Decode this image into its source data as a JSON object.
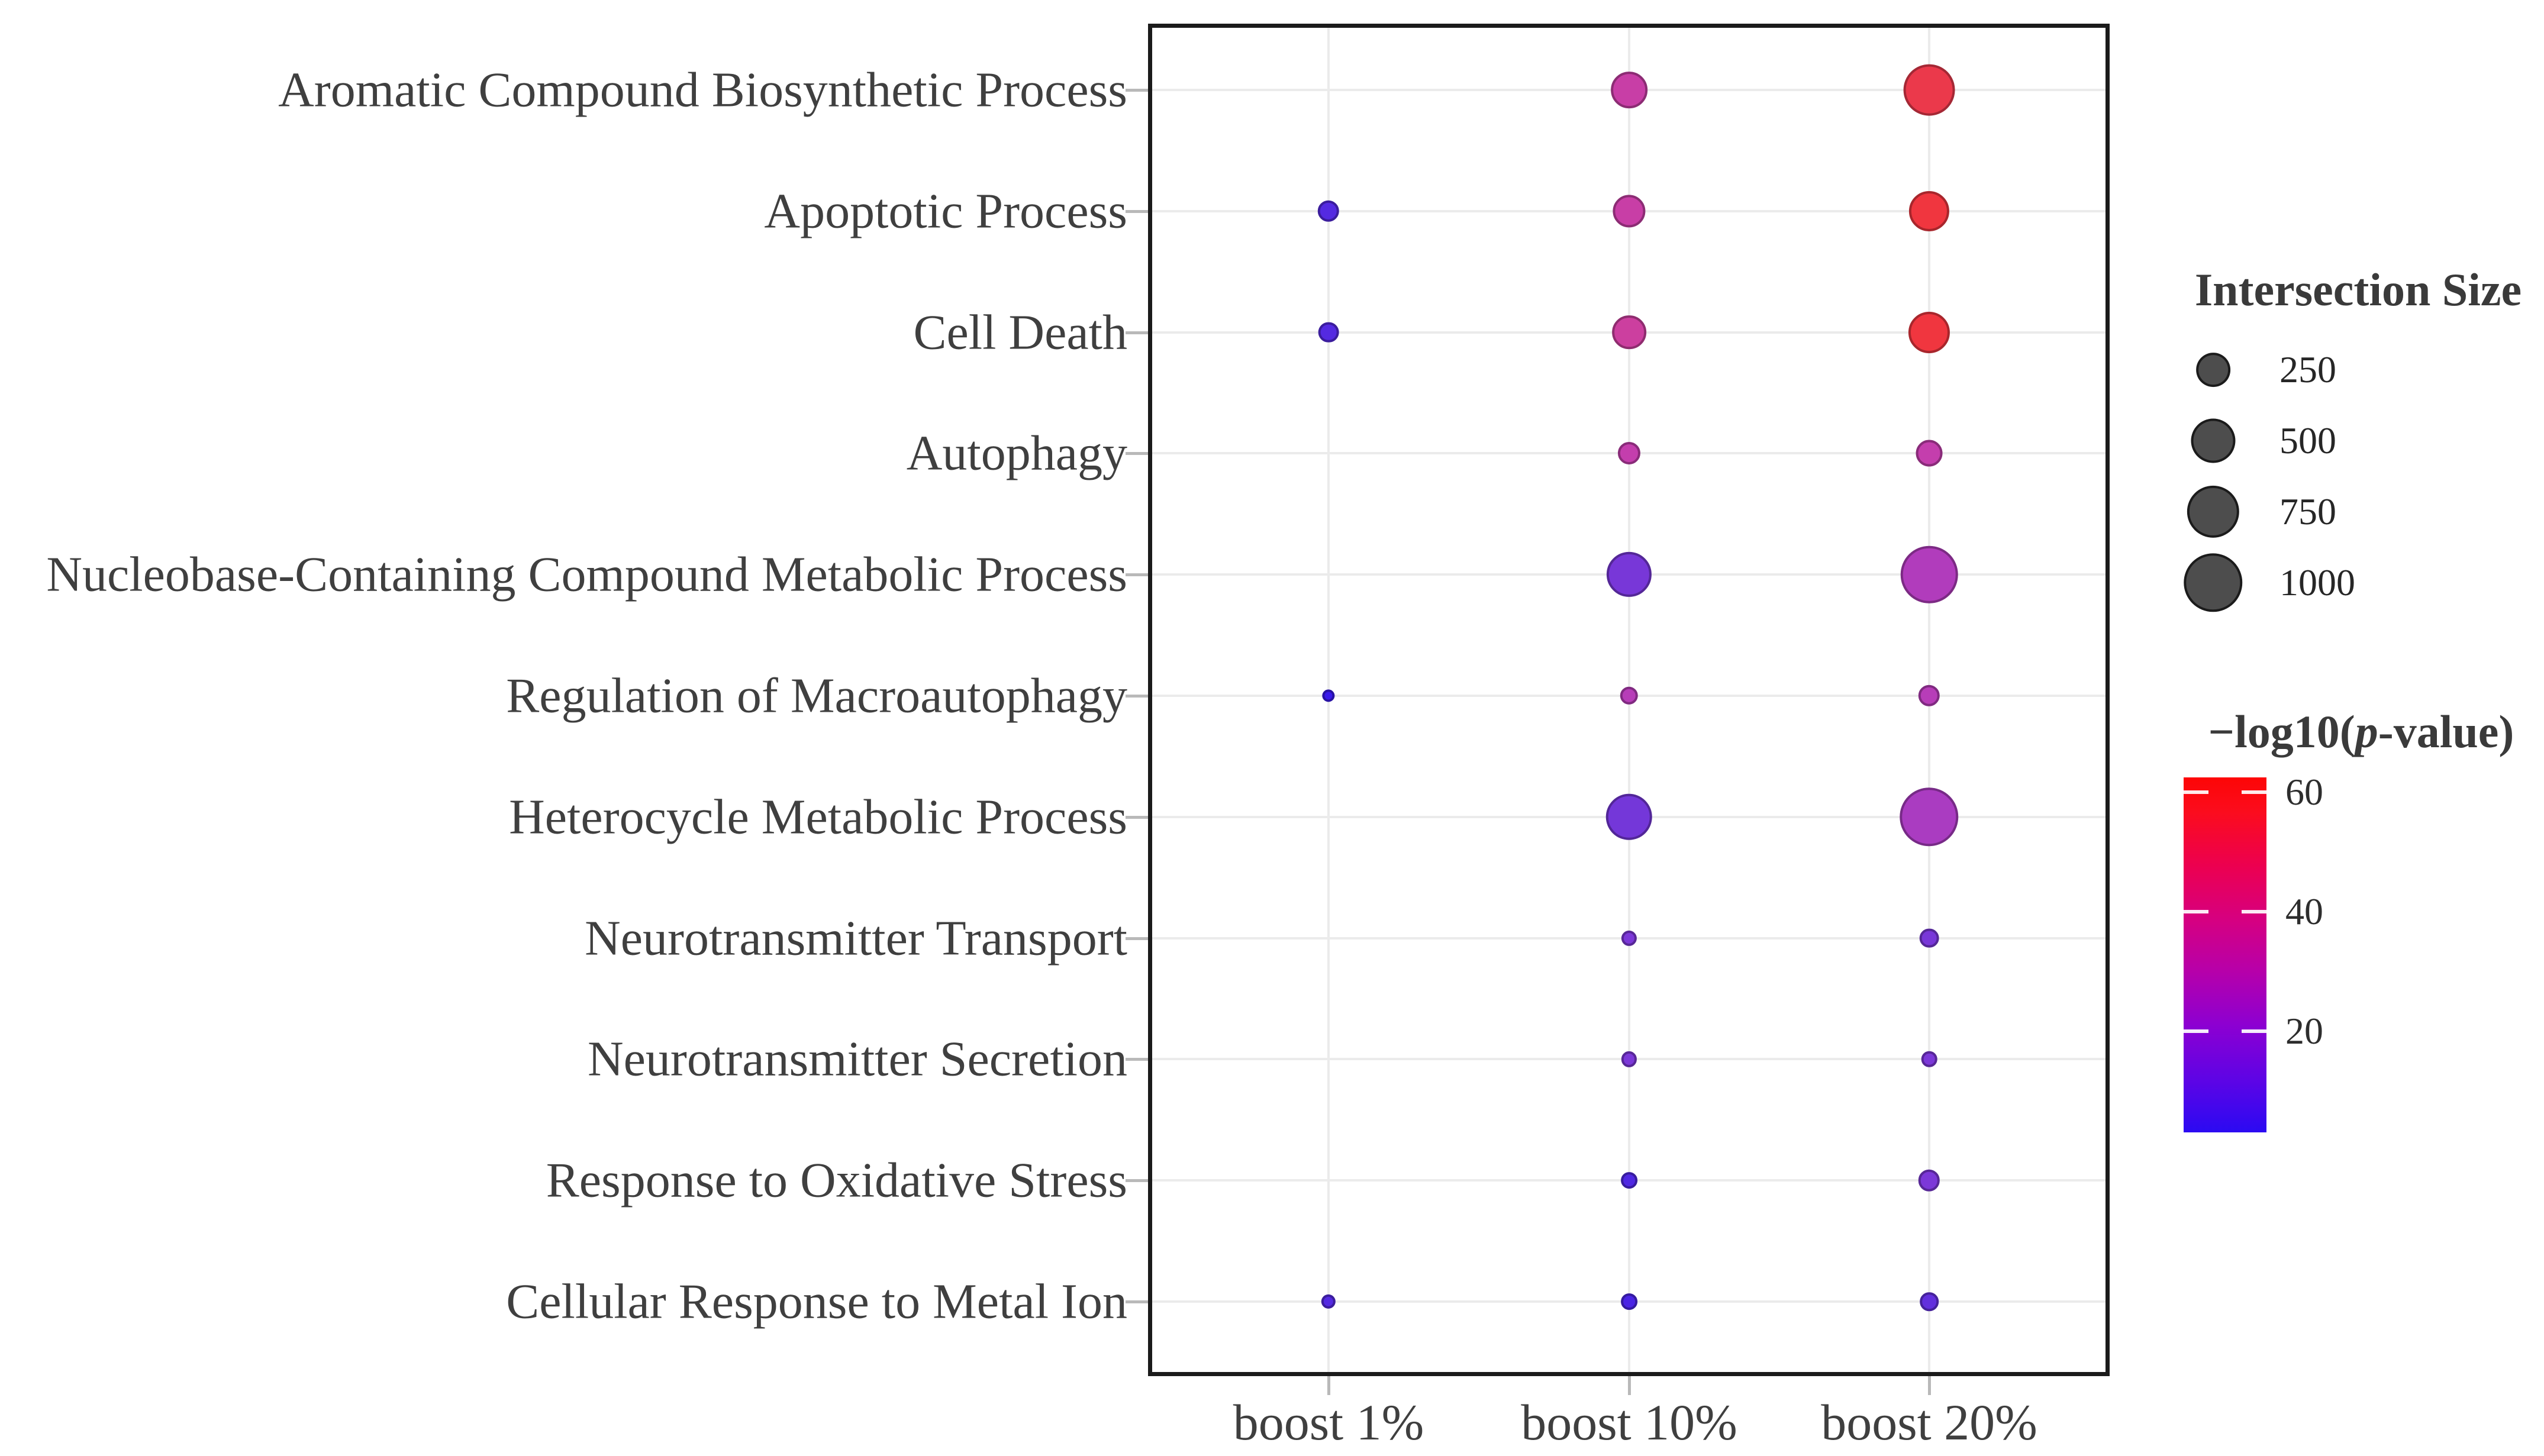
{
  "chart_data": {
    "type": "scatter",
    "subtype": "bubble-dot-plot",
    "title": "",
    "xlabel": "",
    "ylabel": "",
    "grid": true,
    "legend_position": "right",
    "x_categories": [
      "boost 1%",
      "boost 10%",
      "boost 20%"
    ],
    "y_categories": [
      "Aromatic Compound Biosynthetic Process",
      "Apoptotic Process",
      "Cell Death",
      "Autophagy",
      "Nucleobase-Containing Compound Metabolic Process",
      "Regulation of Macroautophagy",
      "Heterocycle Metabolic Process",
      "Neurotransmitter Transport",
      "Neurotransmitter Secretion",
      "Response to Oxidative Stress",
      "Cellular Response to Metal Ion"
    ],
    "points": [
      {
        "y": "Aromatic Compound Biosynthetic Process",
        "x": "boost 10%",
        "intersection_size": 300,
        "neg_log10_p": 35
      },
      {
        "y": "Aromatic Compound Biosynthetic Process",
        "x": "boost 20%",
        "intersection_size": 720,
        "neg_log10_p": 54
      },
      {
        "y": "Apoptotic Process",
        "x": "boost 1%",
        "intersection_size": 60,
        "neg_log10_p": 10
      },
      {
        "y": "Apoptotic Process",
        "x": "boost 10%",
        "intersection_size": 220,
        "neg_log10_p": 35
      },
      {
        "y": "Apoptotic Process",
        "x": "boost 20%",
        "intersection_size": 390,
        "neg_log10_p": 58
      },
      {
        "y": "Cell Death",
        "x": "boost 1%",
        "intersection_size": 50,
        "neg_log10_p": 10
      },
      {
        "y": "Cell Death",
        "x": "boost 10%",
        "intersection_size": 250,
        "neg_log10_p": 37
      },
      {
        "y": "Cell Death",
        "x": "boost 20%",
        "intersection_size": 420,
        "neg_log10_p": 58
      },
      {
        "y": "Autophagy",
        "x": "boost 10%",
        "intersection_size": 70,
        "neg_log10_p": 33
      },
      {
        "y": "Autophagy",
        "x": "boost 20%",
        "intersection_size": 120,
        "neg_log10_p": 33
      },
      {
        "y": "Nucleobase-Containing Compound Metabolic Process",
        "x": "boost 10%",
        "intersection_size": 520,
        "neg_log10_p": 18
      },
      {
        "y": "Nucleobase-Containing Compound Metabolic Process",
        "x": "boost 20%",
        "intersection_size": 930,
        "neg_log10_p": 29
      },
      {
        "y": "Regulation of Macroautophagy",
        "x": "boost 1%",
        "intersection_size": 4,
        "neg_log10_p": 5
      },
      {
        "y": "Regulation of Macroautophagy",
        "x": "boost 10%",
        "intersection_size": 30,
        "neg_log10_p": 30
      },
      {
        "y": "Regulation of Macroautophagy",
        "x": "boost 20%",
        "intersection_size": 60,
        "neg_log10_p": 30
      },
      {
        "y": "Heterocycle Metabolic Process",
        "x": "boost 10%",
        "intersection_size": 560,
        "neg_log10_p": 17
      },
      {
        "y": "Heterocycle Metabolic Process",
        "x": "boost 20%",
        "intersection_size": 1000,
        "neg_log10_p": 28
      },
      {
        "y": "Neurotransmitter Transport",
        "x": "boost 10%",
        "intersection_size": 15,
        "neg_log10_p": 19
      },
      {
        "y": "Neurotransmitter Transport",
        "x": "boost 20%",
        "intersection_size": 40,
        "neg_log10_p": 18
      },
      {
        "y": "Neurotransmitter Secretion",
        "x": "boost 10%",
        "intersection_size": 15,
        "neg_log10_p": 19
      },
      {
        "y": "Neurotransmitter Secretion",
        "x": "boost 20%",
        "intersection_size": 16,
        "neg_log10_p": 19
      },
      {
        "y": "Response to Oxidative Stress",
        "x": "boost 10%",
        "intersection_size": 20,
        "neg_log10_p": 9
      },
      {
        "y": "Response to Oxidative Stress",
        "x": "boost 20%",
        "intersection_size": 60,
        "neg_log10_p": 19
      },
      {
        "y": "Cellular Response to Metal Ion",
        "x": "boost 1%",
        "intersection_size": 10,
        "neg_log10_p": 10
      },
      {
        "y": "Cellular Response to Metal Ion",
        "x": "boost 10%",
        "intersection_size": 20,
        "neg_log10_p": 8
      },
      {
        "y": "Cellular Response to Metal Ion",
        "x": "boost 20%",
        "intersection_size": 35,
        "neg_log10_p": 13
      }
    ],
    "size_legend": {
      "title": "Intersection Size",
      "values": [
        "250",
        "500",
        "750",
        "1000"
      ],
      "dot_color": "#4d4d4d"
    },
    "color_legend": {
      "title_prefix": "−log10(",
      "title_p": "p",
      "title_suffix": "-value)",
      "tick_labels": [
        "60",
        "40",
        "20"
      ],
      "tick_values": [
        60,
        40,
        20
      ],
      "domain_min": 3,
      "domain_max": 62.5,
      "bar_stops": [
        "#2b0af2",
        "#5b04e6",
        "#8c00d2",
        "#b800a8",
        "#d60080",
        "#ec0050",
        "#fb0c1e",
        "#fd0606"
      ],
      "bar_stop_pos": [
        0,
        0.14,
        0.3,
        0.46,
        0.6,
        0.75,
        0.9,
        1
      ]
    },
    "point_color_scale": {
      "stops": [
        "#2e12ee",
        "#4f28e2",
        "#7136da",
        "#8c3bd4",
        "#c13db2",
        "#cf4099",
        "#e23a62",
        "#ee3842",
        "#f52f35"
      ],
      "positions": [
        0,
        0.1,
        0.22,
        0.34,
        0.48,
        0.6,
        0.75,
        0.9,
        1
      ]
    },
    "colors": {
      "grid": "#ebebeb",
      "panel_border": "#1b1b1b",
      "axis_text": "#3f3f3f"
    }
  }
}
